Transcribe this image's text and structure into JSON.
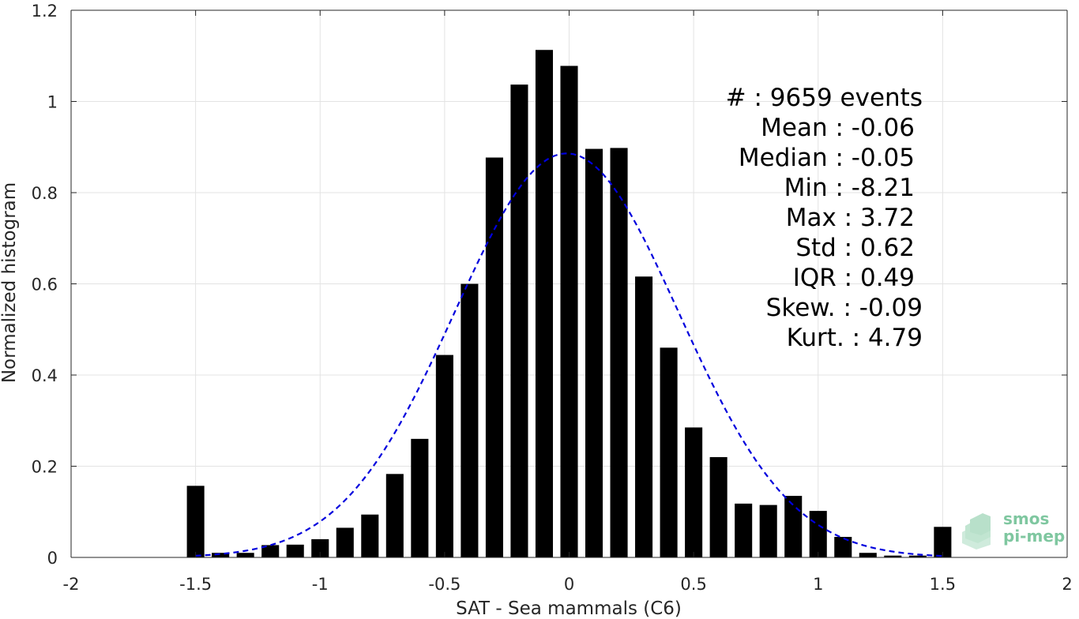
{
  "chart_data": {
    "type": "bar",
    "xlabel": "SAT - Sea mammals (C6)",
    "ylabel": "Normalized histogram",
    "xlim": [
      -2,
      2
    ],
    "ylim": [
      0,
      1.2
    ],
    "x_ticks": [
      -2,
      -1.5,
      -1,
      -0.5,
      0,
      0.5,
      1,
      1.5,
      2
    ],
    "x_tick_labels": [
      "-2",
      "-1.5",
      "-1",
      "-0.5",
      "0",
      "0.5",
      "1",
      "1.5",
      "2"
    ],
    "y_ticks": [
      0,
      0.2,
      0.4,
      0.6,
      0.8,
      1,
      1.2
    ],
    "y_tick_labels": [
      "0",
      "0.2",
      "0.4",
      "0.6",
      "0.8",
      "1",
      "1.2"
    ],
    "grid": true,
    "bar_width": 0.07,
    "bars": {
      "x": [
        -1.5,
        -1.4,
        -1.3,
        -1.2,
        -1.1,
        -1.0,
        -0.9,
        -0.8,
        -0.7,
        -0.6,
        -0.5,
        -0.4,
        -0.3,
        -0.2,
        -0.1,
        0.0,
        0.1,
        0.2,
        0.3,
        0.4,
        0.5,
        0.6,
        0.7,
        0.8,
        0.9,
        1.0,
        1.1,
        1.2,
        1.3,
        1.4,
        1.5
      ],
      "values": [
        0.157,
        0.01,
        0.01,
        0.027,
        0.028,
        0.04,
        0.065,
        0.094,
        0.183,
        0.26,
        0.444,
        0.6,
        0.877,
        1.037,
        1.113,
        1.078,
        0.896,
        0.898,
        0.616,
        0.46,
        0.285,
        0.22,
        0.118,
        0.115,
        0.135,
        0.102,
        0.045,
        0.01,
        0.004,
        0.004,
        0.067
      ],
      "color": "#000000"
    },
    "fit_curve": {
      "style": "dashed",
      "color": "#0000dd",
      "mean": -0.01,
      "std": 0.45,
      "peak": 0.886,
      "x_range": [
        -1.5,
        1.5
      ]
    },
    "annotations": [
      "#  : 9659 events",
      "Mean : -0.06",
      "Median : -0.05",
      "Min : -8.21",
      "Max : 3.72",
      "Std : 0.62",
      "IQR : 0.49",
      "Skew. : -0.09",
      "Kurt. : 4.79"
    ]
  },
  "logo": {
    "line1": "smos",
    "line2": "pi-mep",
    "color": "#7fc7a0"
  }
}
